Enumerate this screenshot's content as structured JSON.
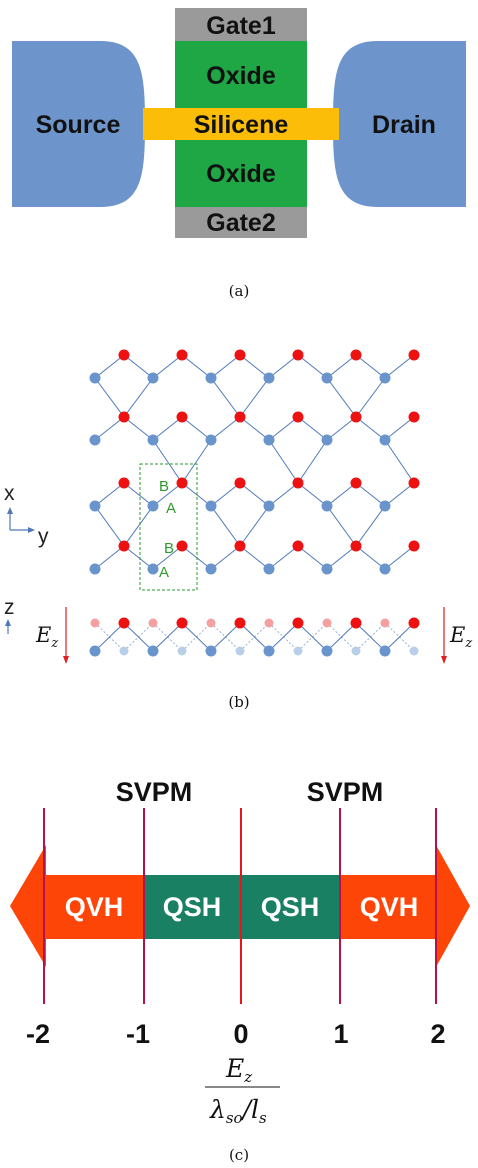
{
  "panel_a": {
    "gate1": "Gate1",
    "gate2": "Gate2",
    "oxide_top": "Oxide",
    "oxide_bottom": "Oxide",
    "channel": "Silicene",
    "source": "Source",
    "drain": "Drain",
    "caption": "(a)",
    "colors": {
      "contact": "#6d95cb",
      "oxide": "#1fa645",
      "gate": "#9a9a9a",
      "silicene": "#fbbd08"
    }
  },
  "panel_b": {
    "axis_x": "x",
    "axis_y": "y",
    "axis_z": "z",
    "site_b_upper": "B",
    "site_a_upper": "A",
    "site_b_lower": "B",
    "site_a_lower": "A",
    "field_left": "E",
    "field_left_sub": "z",
    "field_right": "E",
    "field_right_sub": "z",
    "caption": "(b)",
    "colors": {
      "sublattice_a": "#6a95cc",
      "sublattice_b": "#ee1111",
      "unit_cell": "#2e9a2e",
      "bond": "#4f79b8"
    }
  },
  "panel_c": {
    "top_labels": [
      "SVPM",
      "SVPM"
    ],
    "phases": [
      "QVH",
      "QSH",
      "QSH",
      "QVH"
    ],
    "ticks": [
      "-2",
      "-1",
      "0",
      "1",
      "2"
    ],
    "ratio_numerator": "E",
    "ratio_numerator_sub": "z",
    "ratio_den_lambda": "λ",
    "ratio_den_lambda_sub": "so",
    "ratio_den_slash": "/",
    "ratio_den_l": "l",
    "ratio_den_l_sub": "s",
    "caption": "(c)",
    "colors": {
      "qvh": "#fe4508",
      "qsh": "#1a8063",
      "boundary": "#b5124a"
    }
  }
}
